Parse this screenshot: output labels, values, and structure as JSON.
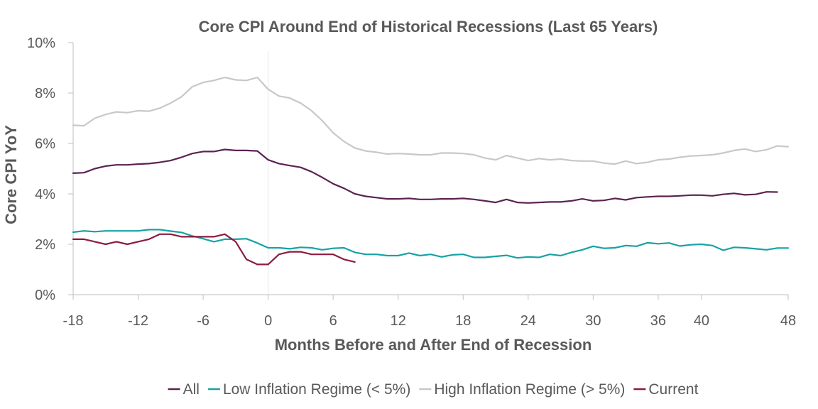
{
  "chart_data": {
    "type": "line",
    "title": "Core CPI Around End of Historical Recessions (Last 65 Years)",
    "xlabel": "Months Before and After End of Recession",
    "ylabel": "Core CPI YoY",
    "xlim": [
      -18,
      48
    ],
    "ylim": [
      0,
      10
    ],
    "x_ticks": [
      -18,
      -12,
      -6,
      0,
      6,
      12,
      18,
      24,
      30,
      36,
      40,
      48
    ],
    "x_tick_labels": [
      "-18",
      "-12",
      "-6",
      "0",
      "6",
      "12",
      "18",
      "24",
      "30",
      "36",
      "40",
      "48"
    ],
    "y_ticks": [
      0,
      2,
      4,
      6,
      8,
      10
    ],
    "y_tick_labels": [
      "0%",
      "2%",
      "4%",
      "6%",
      "8%",
      "10%"
    ],
    "grid": false,
    "legend_position": "bottom",
    "series": [
      {
        "name": "All",
        "color": "#5b2352",
        "x_start": -18,
        "values": [
          4.82,
          4.84,
          5.0,
          5.1,
          5.15,
          5.15,
          5.18,
          5.2,
          5.25,
          5.32,
          5.45,
          5.6,
          5.68,
          5.68,
          5.76,
          5.72,
          5.72,
          5.7,
          5.35,
          5.2,
          5.12,
          5.05,
          4.88,
          4.65,
          4.4,
          4.22,
          4.0,
          3.9,
          3.85,
          3.8,
          3.8,
          3.82,
          3.78,
          3.78,
          3.8,
          3.8,
          3.82,
          3.78,
          3.72,
          3.66,
          3.78,
          3.66,
          3.64,
          3.66,
          3.68,
          3.68,
          3.72,
          3.8,
          3.72,
          3.74,
          3.82,
          3.76,
          3.85,
          3.88,
          3.9,
          3.9,
          3.92,
          3.95,
          3.95,
          3.92,
          3.98,
          4.02,
          3.96,
          3.98,
          4.08,
          4.07
        ]
      },
      {
        "name": "Low Inflation Regime (< 5%)",
        "color": "#17a2a6",
        "x_start": -18,
        "values": [
          2.48,
          2.53,
          2.5,
          2.53,
          2.53,
          2.53,
          2.53,
          2.58,
          2.58,
          2.52,
          2.47,
          2.33,
          2.22,
          2.1,
          2.2,
          2.2,
          2.22,
          2.05,
          1.86,
          1.86,
          1.82,
          1.88,
          1.86,
          1.78,
          1.84,
          1.86,
          1.68,
          1.6,
          1.6,
          1.55,
          1.55,
          1.65,
          1.55,
          1.6,
          1.5,
          1.58,
          1.6,
          1.48,
          1.48,
          1.52,
          1.56,
          1.46,
          1.5,
          1.48,
          1.6,
          1.55,
          1.68,
          1.78,
          1.92,
          1.84,
          1.86,
          1.95,
          1.92,
          2.06,
          2.02,
          2.05,
          1.93,
          1.98,
          2.0,
          1.95,
          1.76,
          1.88,
          1.86,
          1.82,
          1.78,
          1.85,
          1.85
        ]
      },
      {
        "name": "High Inflation Regime (> 5%)",
        "color": "#c8c8c8",
        "x_start": -18,
        "values": [
          6.72,
          6.7,
          7.0,
          7.15,
          7.25,
          7.22,
          7.3,
          7.28,
          7.4,
          7.6,
          7.85,
          8.25,
          8.42,
          8.5,
          8.62,
          8.52,
          8.5,
          8.62,
          8.15,
          7.88,
          7.8,
          7.6,
          7.3,
          6.9,
          6.42,
          6.08,
          5.82,
          5.7,
          5.65,
          5.58,
          5.6,
          5.58,
          5.55,
          5.55,
          5.62,
          5.62,
          5.6,
          5.55,
          5.42,
          5.35,
          5.52,
          5.42,
          5.32,
          5.4,
          5.35,
          5.38,
          5.32,
          5.3,
          5.3,
          5.22,
          5.18,
          5.3,
          5.2,
          5.25,
          5.35,
          5.38,
          5.45,
          5.5,
          5.52,
          5.55,
          5.62,
          5.72,
          5.78,
          5.68,
          5.75,
          5.9,
          5.87
        ]
      },
      {
        "name": "Current",
        "color": "#8b1c3f",
        "x_start": -18,
        "values": [
          2.2,
          2.2,
          2.1,
          2.0,
          2.1,
          2.0,
          2.1,
          2.2,
          2.4,
          2.4,
          2.3,
          2.3,
          2.3,
          2.3,
          2.4,
          2.1,
          1.4,
          1.2,
          1.2,
          1.6,
          1.7,
          1.7,
          1.6,
          1.6,
          1.6,
          1.4,
          1.3
        ]
      }
    ]
  }
}
